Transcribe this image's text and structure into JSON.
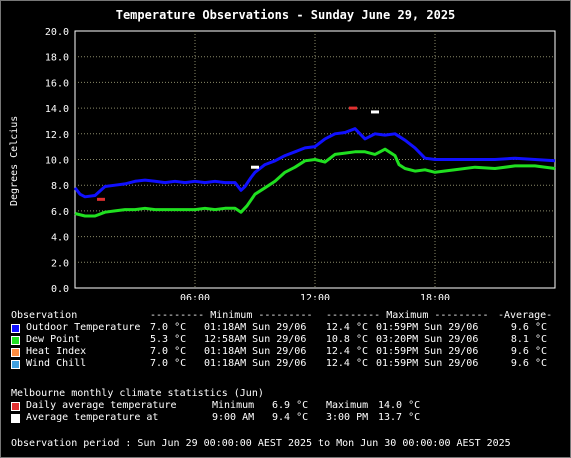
{
  "chart_data": {
    "type": "line",
    "title": "Temperature Observations - Sunday June 29, 2025",
    "xlabel": "",
    "ylabel": "Degrees Celcius",
    "ylim": [
      0,
      20
    ],
    "yticks": [
      "0.0",
      "2.0",
      "4.0",
      "6.0",
      "8.0",
      "10.0",
      "12.0",
      "14.0",
      "16.0",
      "18.0",
      "20.0"
    ],
    "xlim": [
      0,
      24
    ],
    "xticks": [
      {
        "hour": 6,
        "label": "06:00"
      },
      {
        "hour": 12,
        "label": "12:00"
      },
      {
        "hour": 18,
        "label": "18:00"
      }
    ],
    "grid": true,
    "series": [
      {
        "name": "Outdoor Temperature",
        "color": "#1010ff",
        "x": [
          0,
          0.25,
          0.5,
          1,
          1.5,
          2,
          2.5,
          3,
          3.5,
          4,
          4.5,
          5,
          5.5,
          6,
          6.5,
          7,
          7.5,
          8,
          8.3,
          8.5,
          8.8,
          9,
          9.5,
          10,
          10.5,
          11,
          11.5,
          12,
          12.5,
          13,
          13.5,
          14,
          14.5,
          15,
          15.5,
          16,
          16.5,
          17,
          17.5,
          18,
          19,
          20,
          21,
          22,
          23,
          24
        ],
        "y": [
          7.8,
          7.3,
          7.1,
          7.2,
          7.9,
          8.0,
          8.1,
          8.3,
          8.4,
          8.3,
          8.2,
          8.3,
          8.2,
          8.3,
          8.2,
          8.3,
          8.2,
          8.2,
          7.6,
          7.9,
          8.6,
          9.0,
          9.6,
          9.9,
          10.3,
          10.6,
          10.9,
          11.0,
          11.6,
          12.0,
          12.1,
          12.4,
          11.6,
          12.0,
          11.9,
          12.0,
          11.5,
          10.9,
          10.1,
          10.0,
          10.0,
          10.0,
          10.0,
          10.1,
          10.0,
          9.9
        ]
      },
      {
        "name": "Dew Point",
        "color": "#20e020",
        "x": [
          0,
          0.5,
          1,
          1.5,
          2,
          2.5,
          3,
          3.5,
          4,
          4.5,
          5,
          5.5,
          6,
          6.5,
          7,
          7.5,
          8,
          8.3,
          8.6,
          9,
          9.5,
          10,
          10.5,
          11,
          11.5,
          12,
          12.5,
          13,
          13.5,
          14,
          14.5,
          15,
          15.5,
          16,
          16.2,
          16.5,
          17,
          17.5,
          18,
          19,
          20,
          21,
          22,
          23,
          24
        ],
        "y": [
          5.8,
          5.6,
          5.6,
          5.9,
          6.0,
          6.1,
          6.1,
          6.2,
          6.1,
          6.1,
          6.1,
          6.1,
          6.1,
          6.2,
          6.1,
          6.2,
          6.2,
          5.9,
          6.4,
          7.3,
          7.8,
          8.3,
          9.0,
          9.4,
          9.9,
          10.0,
          9.8,
          10.4,
          10.5,
          10.6,
          10.6,
          10.4,
          10.8,
          10.3,
          9.6,
          9.3,
          9.1,
          9.2,
          9.0,
          9.2,
          9.4,
          9.3,
          9.5,
          9.5,
          9.3
        ]
      }
    ],
    "markers": [
      {
        "name": "Daily average temperature",
        "type": "minimum",
        "hour": 1.3,
        "value": 6.9,
        "color": "#e03030"
      },
      {
        "name": "Daily average temperature",
        "type": "maximum",
        "hour": 13.9,
        "value": 14.0,
        "color": "#e03030"
      },
      {
        "name": "Average temperature at",
        "type": "9am",
        "hour": 9.0,
        "value": 9.4,
        "color": "#ffffff"
      },
      {
        "name": "Average temperature at",
        "type": "3pm",
        "hour": 15.0,
        "value": 13.7,
        "color": "#ffffff"
      }
    ]
  },
  "table": {
    "headers": {
      "observation": "Observation",
      "minimum": "--------- Minimum ---------",
      "maximum": "--------- Maximum ---------",
      "average": "-Average-"
    },
    "rows": [
      {
        "name": "Outdoor Temperature",
        "color": "#1010ff",
        "min": "7.0 °C",
        "min_time": "01:18AM Sun 29/06",
        "max": "12.4 °C",
        "max_time": "01:59PM Sun 29/06",
        "avg": "9.6 °C"
      },
      {
        "name": "Dew Point",
        "color": "#20e020",
        "min": "5.3 °C",
        "min_time": "12:58AM Sun 29/06",
        "max": "10.8 °C",
        "max_time": "03:20PM Sun 29/06",
        "avg": "8.1 °C"
      },
      {
        "name": "Heat Index",
        "color": "#ff8c40",
        "min": "7.0 °C",
        "min_time": "01:18AM Sun 29/06",
        "max": "12.4 °C",
        "max_time": "01:59PM Sun 29/06",
        "avg": "9.6 °C"
      },
      {
        "name": "Wind Chill",
        "color": "#40a0e0",
        "min": "7.0 °C",
        "min_time": "01:18AM Sun 29/06",
        "max": "12.4 °C",
        "max_time": "01:59PM Sun 29/06",
        "avg": "9.6 °C"
      }
    ]
  },
  "climate": {
    "heading": "Melbourne monthly climate statistics (Jun)",
    "rows": [
      {
        "label": "Daily average temperature",
        "a_label": "Minimum",
        "a_value": "6.9 °C",
        "b_label": "Maximum",
        "b_value": "14.0 °C"
      },
      {
        "label": "Average temperature at",
        "a_label": "9:00 AM",
        "a_value": "9.4 °C",
        "b_label": "3:00 PM",
        "b_value": "13.7 °C"
      }
    ]
  },
  "footer": {
    "period": "Observation period : Sun Jun 29 00:00:00 AEST 2025 to Mon Jun 30 00:00:00 AEST 2025"
  }
}
